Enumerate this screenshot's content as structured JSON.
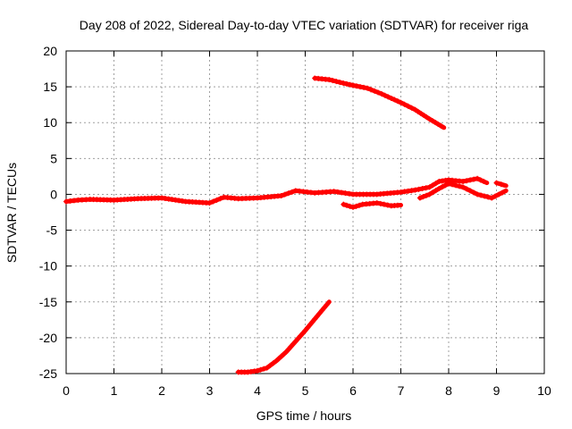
{
  "chart_data": {
    "type": "scatter",
    "title": "Day 208 of 2022, Sidereal Day-to-day VTEC variation (SDTVAR) for receiver riga",
    "xlabel": "GPS time / hours",
    "ylabel": "SDTVAR / TECUs",
    "xlim": [
      0,
      10
    ],
    "ylim": [
      -25,
      20
    ],
    "xticks": [
      0,
      1,
      2,
      3,
      4,
      5,
      6,
      7,
      8,
      9,
      10
    ],
    "yticks": [
      -25,
      -20,
      -15,
      -10,
      -5,
      0,
      5,
      10,
      15,
      20
    ],
    "grid": true,
    "color": "#ff0000",
    "series": [
      {
        "name": "track-main",
        "x": [
          0.0,
          0.25,
          0.5,
          1.0,
          1.5,
          2.0,
          2.5,
          3.0,
          3.3,
          3.6,
          4.0,
          4.5,
          4.8,
          5.2,
          5.6,
          6.0,
          6.5,
          7.0,
          7.3,
          7.6,
          7.8,
          8.0,
          8.3,
          8.6,
          8.8
        ],
        "y": [
          -1.0,
          -0.8,
          -0.7,
          -0.8,
          -0.6,
          -0.5,
          -1.0,
          -1.2,
          -0.4,
          -0.6,
          -0.5,
          -0.2,
          0.5,
          0.2,
          0.4,
          0.0,
          0.0,
          0.3,
          0.6,
          1.0,
          1.8,
          2.0,
          1.8,
          2.2,
          1.6
        ]
      },
      {
        "name": "track-upper",
        "x": [
          5.2,
          5.5,
          5.8,
          6.0,
          6.3,
          6.6,
          7.0,
          7.3,
          7.6,
          7.9
        ],
        "y": [
          16.2,
          16.0,
          15.5,
          15.2,
          14.8,
          14.0,
          12.8,
          11.8,
          10.5,
          9.3
        ]
      },
      {
        "name": "track-lower",
        "x": [
          3.6,
          3.8,
          4.0,
          4.2,
          4.4,
          4.6,
          4.8,
          5.0,
          5.2,
          5.4,
          5.5
        ],
        "y": [
          -24.8,
          -24.8,
          -24.6,
          -24.2,
          -23.2,
          -22.0,
          -20.5,
          -19.0,
          -17.4,
          -15.8,
          -15.0
        ]
      },
      {
        "name": "track-dip",
        "x": [
          5.8,
          6.0,
          6.2,
          6.5,
          6.8,
          7.0
        ],
        "y": [
          -1.4,
          -1.8,
          -1.4,
          -1.2,
          -1.6,
          -1.5
        ]
      },
      {
        "name": "track-tail",
        "x": [
          7.4,
          7.6,
          7.8,
          8.0,
          8.3,
          8.6,
          8.9,
          9.2
        ],
        "y": [
          -0.5,
          0.0,
          0.8,
          1.5,
          1.0,
          0.0,
          -0.5,
          0.5
        ]
      },
      {
        "name": "track-stub",
        "x": [
          9.0,
          9.1,
          9.2
        ],
        "y": [
          1.6,
          1.4,
          1.2
        ]
      }
    ]
  }
}
